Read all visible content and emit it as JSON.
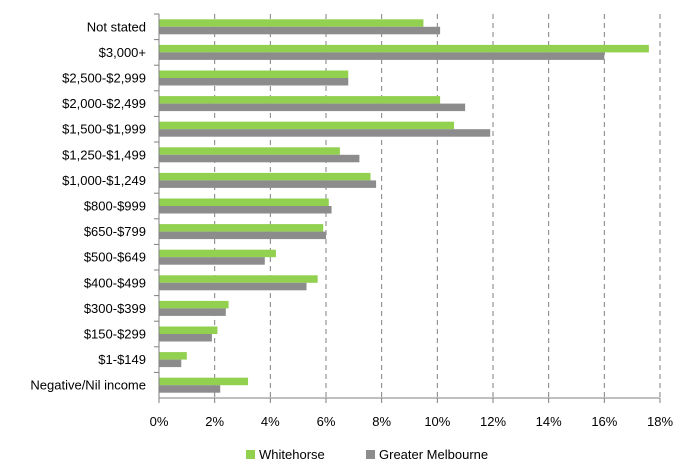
{
  "chart_data": {
    "type": "bar",
    "orientation": "horizontal",
    "categories": [
      "Not stated",
      "$3,000+",
      "$2,500-$2,999",
      "$2,000-$2,499",
      "$1,500-$1,999",
      "$1,250-$1,499",
      "$1,000-$1,249",
      "$800-$999",
      "$650-$799",
      "$500-$649",
      "$400-$499",
      "$300-$399",
      "$150-$299",
      "$1-$149",
      "Negative/Nil income"
    ],
    "series": [
      {
        "name": "Whitehorse",
        "color": "#92d050",
        "values": [
          9.5,
          17.6,
          6.8,
          10.1,
          10.6,
          6.5,
          7.6,
          6.1,
          5.9,
          4.2,
          5.7,
          2.5,
          2.1,
          1.0,
          3.2
        ]
      },
      {
        "name": "Greater Melbourne",
        "color": "#8c8c8c",
        "values": [
          10.1,
          16.0,
          6.8,
          11.0,
          11.9,
          7.2,
          7.8,
          6.2,
          6.0,
          3.8,
          5.3,
          2.4,
          1.9,
          0.8,
          2.2
        ]
      }
    ],
    "x_ticks": [
      "0%",
      "2%",
      "4%",
      "6%",
      "8%",
      "10%",
      "12%",
      "14%",
      "16%",
      "18%"
    ],
    "xlim": [
      0,
      18
    ],
    "xlabel": "",
    "ylabel": "",
    "title": "",
    "grid": "vertical dashed",
    "legend_position": "bottom"
  }
}
